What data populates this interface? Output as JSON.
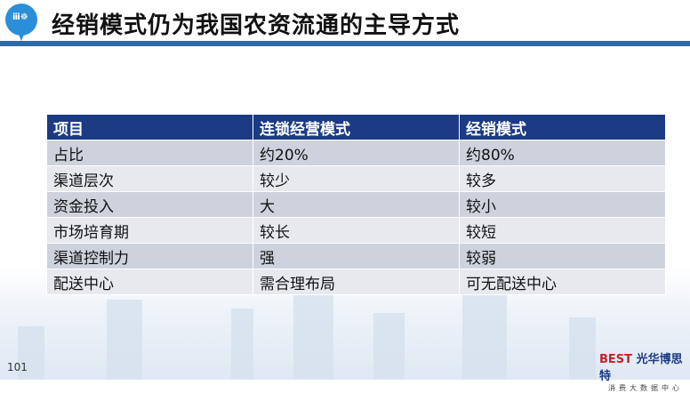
{
  "header": {
    "title": "经销模式仍为我国农资流通的主导方式",
    "logo_icon": "farm-pin-icon"
  },
  "table": {
    "headers": [
      "项目",
      "连锁经营模式",
      "经销模式"
    ],
    "rows": [
      [
        "占比",
        "约20%",
        "约80%"
      ],
      [
        "渠道层次",
        "较少",
        "较多"
      ],
      [
        "资金投入",
        "大",
        "较小"
      ],
      [
        "市场培育期",
        "较长",
        "较短"
      ],
      [
        "渠道控制力",
        "强",
        "较弱"
      ],
      [
        "配送中心",
        "需合理布局",
        "可无配送中心"
      ]
    ]
  },
  "footer": {
    "page_number": "101",
    "brand_logo_text": "BEST",
    "brand_name": "光华博思特",
    "brand_sub": "消费大数据中心"
  },
  "colors": {
    "header_bg": "#1c3b84",
    "accent_rule": "#1f6fb8",
    "row_dark": "#ced2dc",
    "row_light": "#e7e9ee"
  }
}
